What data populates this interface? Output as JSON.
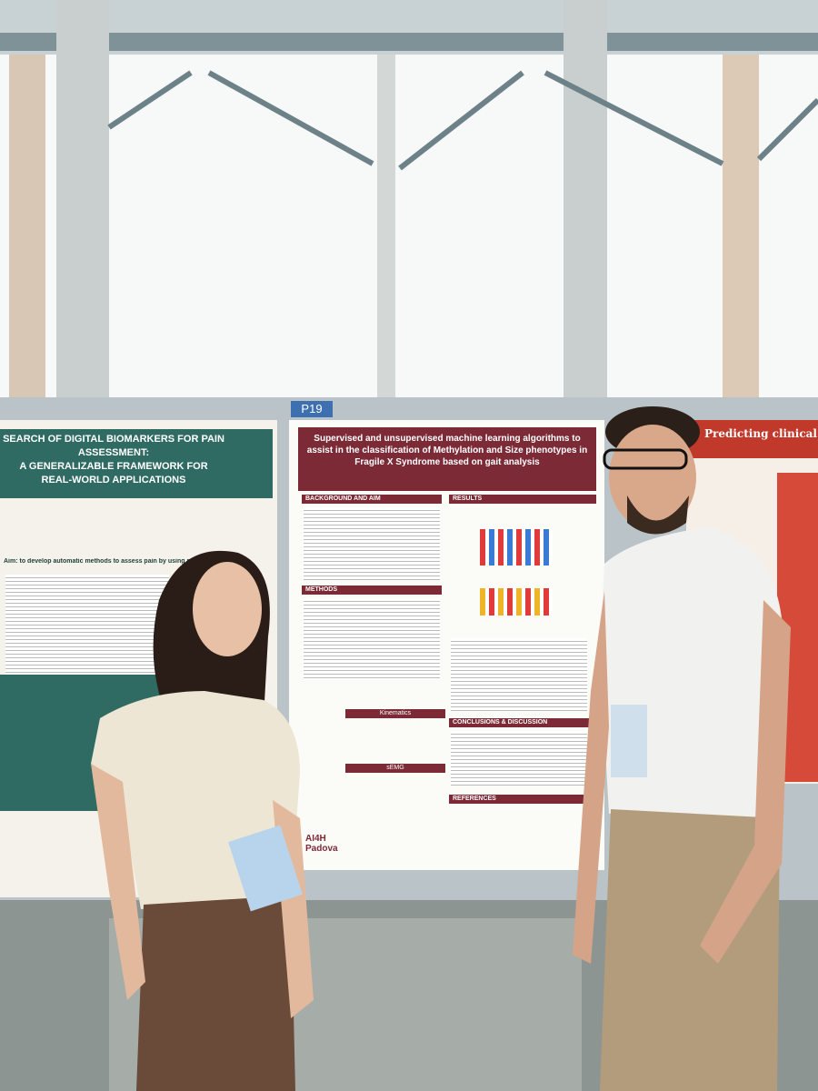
{
  "board_label": "P19",
  "left_poster": {
    "title_lines": [
      "SEARCH OF DIGITAL BIOMARKERS FOR PAIN ASSESSMENT:",
      "A GENERALIZABLE FRAMEWORK FOR",
      "REAL-WORLD APPLICATIONS"
    ],
    "aim": "Aim: to develop automatic methods to assess pain by using physiol"
  },
  "center_poster": {
    "title": "Supervised and unsupervised machine learning algorithms to assist in the classification of Methylation and Size phenotypes in Fragile X Syndrome based on gait analysis",
    "left_sections": [
      "BACKGROUND AND AIM",
      "METHODS"
    ],
    "right_sections": [
      "RESULTS",
      "CONCLUSIONS & DISCUSSION",
      "REFERENCES"
    ],
    "sub_labels": [
      "Kinematics",
      "sEMG"
    ],
    "logo": "AI4H Padova"
  },
  "right_poster": {
    "title": "Predicting clinical traje"
  }
}
